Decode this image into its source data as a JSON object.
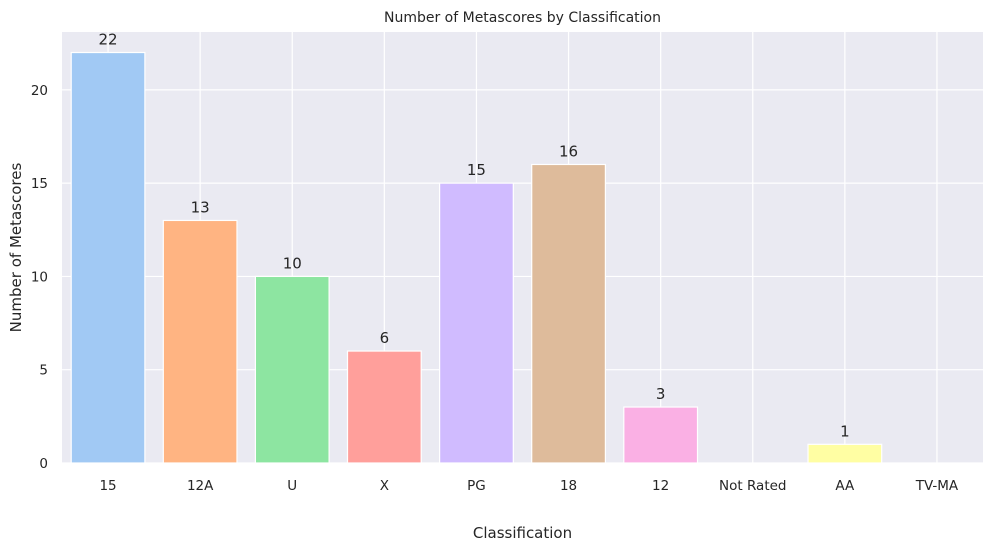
{
  "chart_data": {
    "type": "bar",
    "title": "Number of Metascores by Classification",
    "xlabel": "Classification",
    "ylabel": "Number of Metascores",
    "categories": [
      "15",
      "12A",
      "U",
      "X",
      "PG",
      "18",
      "12",
      "Not Rated",
      "AA",
      "TV-MA"
    ],
    "values": [
      22,
      13,
      10,
      6,
      15,
      16,
      3,
      0,
      1,
      0
    ],
    "data_labels": [
      "22",
      "13",
      "10",
      "6",
      "15",
      "16",
      "3",
      "",
      "1",
      ""
    ],
    "ylim": [
      0,
      23.1
    ],
    "yticks": [
      0,
      5,
      10,
      15,
      20
    ],
    "ytick_labels": [
      "0",
      "5",
      "10",
      "15",
      "20"
    ],
    "grid": true,
    "legend": "none",
    "colors": [
      "#a1c9f4",
      "#ffb482",
      "#8de5a1",
      "#ff9f9b",
      "#d0bbff",
      "#debb9b",
      "#fab0e4",
      "#cfcfcf",
      "#fffea3",
      "#b9f2f0"
    ],
    "background": "#eaeaf2"
  }
}
